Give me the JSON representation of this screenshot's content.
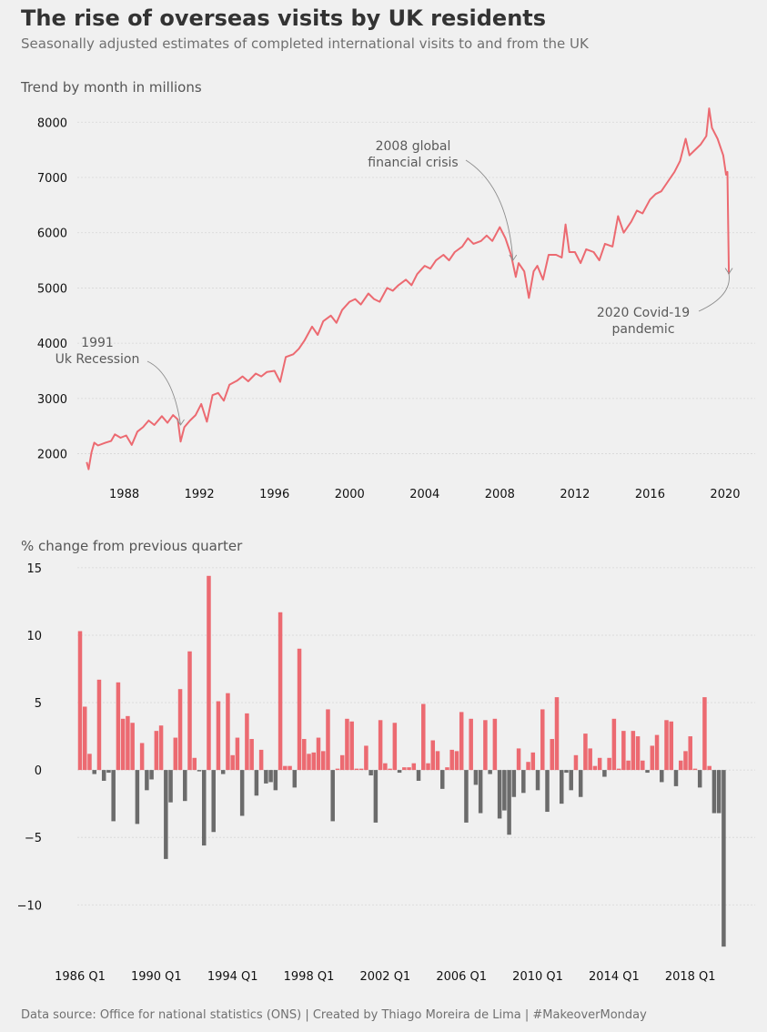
{
  "title": "The rise of overseas visits by UK residents",
  "subtitle": "Seasonally adjusted estimates of completed international visits to and from the UK",
  "footer": "Data source: Office for national statistics (ONS) | Created by Thiago Moreira de Lima | #MakeoverMonday",
  "colors": {
    "line": "#ec6a71",
    "positive": "#ec6a71",
    "negative": "#6b6b6b",
    "background": "#f0f0f0"
  },
  "chart_data": [
    {
      "type": "line",
      "title": "Trend by month in millions",
      "xlim": [
        1985.5,
        2021.6
      ],
      "ylim": [
        1400,
        8400
      ],
      "xticks": [
        1988,
        1992,
        1996,
        2000,
        2004,
        2008,
        2012,
        2016,
        2020
      ],
      "yticks": [
        2000,
        3000,
        4000,
        5000,
        6000,
        7000,
        8000
      ],
      "grid": "horizontal",
      "series": [
        {
          "points": [
            [
              1986.0,
              1850
            ],
            [
              1986.1,
              1720
            ],
            [
              1986.25,
              2020
            ],
            [
              1986.4,
              2200
            ],
            [
              1986.6,
              2150
            ],
            [
              1987.0,
              2200
            ],
            [
              1987.3,
              2230
            ],
            [
              1987.5,
              2350
            ],
            [
              1987.8,
              2290
            ],
            [
              1988.1,
              2330
            ],
            [
              1988.4,
              2160
            ],
            [
              1988.7,
              2400
            ],
            [
              1989.0,
              2480
            ],
            [
              1989.3,
              2600
            ],
            [
              1989.6,
              2520
            ],
            [
              1990.0,
              2680
            ],
            [
              1990.3,
              2560
            ],
            [
              1990.6,
              2700
            ],
            [
              1990.85,
              2620
            ],
            [
              1991.0,
              2220
            ],
            [
              1991.2,
              2480
            ],
            [
              1991.5,
              2600
            ],
            [
              1991.8,
              2700
            ],
            [
              1992.1,
              2900
            ],
            [
              1992.4,
              2580
            ],
            [
              1992.7,
              3060
            ],
            [
              1993.0,
              3100
            ],
            [
              1993.3,
              2960
            ],
            [
              1993.6,
              3250
            ],
            [
              1994.0,
              3320
            ],
            [
              1994.3,
              3400
            ],
            [
              1994.6,
              3310
            ],
            [
              1995.0,
              3450
            ],
            [
              1995.3,
              3400
            ],
            [
              1995.6,
              3480
            ],
            [
              1996.0,
              3500
            ],
            [
              1996.3,
              3300
            ],
            [
              1996.6,
              3750
            ],
            [
              1997.0,
              3800
            ],
            [
              1997.3,
              3900
            ],
            [
              1997.6,
              4050
            ],
            [
              1998.0,
              4300
            ],
            [
              1998.3,
              4150
            ],
            [
              1998.6,
              4400
            ],
            [
              1999.0,
              4500
            ],
            [
              1999.3,
              4370
            ],
            [
              1999.6,
              4600
            ],
            [
              2000.0,
              4750
            ],
            [
              2000.3,
              4800
            ],
            [
              2000.6,
              4700
            ],
            [
              2001.0,
              4900
            ],
            [
              2001.3,
              4800
            ],
            [
              2001.6,
              4750
            ],
            [
              2002.0,
              5000
            ],
            [
              2002.3,
              4950
            ],
            [
              2002.6,
              5050
            ],
            [
              2003.0,
              5150
            ],
            [
              2003.3,
              5050
            ],
            [
              2003.6,
              5250
            ],
            [
              2004.0,
              5400
            ],
            [
              2004.3,
              5350
            ],
            [
              2004.6,
              5500
            ],
            [
              2005.0,
              5600
            ],
            [
              2005.3,
              5500
            ],
            [
              2005.6,
              5650
            ],
            [
              2006.0,
              5750
            ],
            [
              2006.3,
              5900
            ],
            [
              2006.6,
              5800
            ],
            [
              2007.0,
              5850
            ],
            [
              2007.3,
              5950
            ],
            [
              2007.6,
              5850
            ],
            [
              2008.0,
              6100
            ],
            [
              2008.3,
              5900
            ],
            [
              2008.6,
              5600
            ],
            [
              2008.85,
              5200
            ],
            [
              2009.0,
              5450
            ],
            [
              2009.3,
              5300
            ],
            [
              2009.55,
              4820
            ],
            [
              2009.8,
              5300
            ],
            [
              2010.0,
              5400
            ],
            [
              2010.3,
              5150
            ],
            [
              2010.6,
              5600
            ],
            [
              2011.0,
              5600
            ],
            [
              2011.3,
              5550
            ],
            [
              2011.5,
              6150
            ],
            [
              2011.7,
              5650
            ],
            [
              2012.0,
              5650
            ],
            [
              2012.3,
              5450
            ],
            [
              2012.6,
              5700
            ],
            [
              2013.0,
              5650
            ],
            [
              2013.3,
              5500
            ],
            [
              2013.6,
              5800
            ],
            [
              2014.0,
              5750
            ],
            [
              2014.3,
              6300
            ],
            [
              2014.6,
              6000
            ],
            [
              2015.0,
              6200
            ],
            [
              2015.3,
              6400
            ],
            [
              2015.6,
              6350
            ],
            [
              2016.0,
              6600
            ],
            [
              2016.3,
              6700
            ],
            [
              2016.6,
              6750
            ],
            [
              2017.0,
              6950
            ],
            [
              2017.3,
              7100
            ],
            [
              2017.6,
              7300
            ],
            [
              2017.9,
              7700
            ],
            [
              2018.1,
              7400
            ],
            [
              2018.4,
              7500
            ],
            [
              2018.7,
              7600
            ],
            [
              2019.0,
              7750
            ],
            [
              2019.15,
              8250
            ],
            [
              2019.3,
              7900
            ],
            [
              2019.6,
              7700
            ],
            [
              2019.9,
              7400
            ],
            [
              2020.05,
              7050
            ],
            [
              2020.12,
              7100
            ],
            [
              2020.2,
              5250
            ]
          ]
        }
      ],
      "annotations": [
        {
          "lines": [
            "1991",
            "Uk Recession"
          ],
          "x": 1991.0,
          "y": 2520
        },
        {
          "lines": [
            "2008 global",
            "financial crisis"
          ],
          "x": 2008.7,
          "y": 5500
        },
        {
          "lines": [
            "2020 Covid-19",
            "pandemic"
          ],
          "x": 2020.2,
          "y": 5260
        }
      ]
    },
    {
      "type": "bar",
      "title": "% change from previous quarter",
      "ylim": [
        -14.1,
        15.6
      ],
      "yticks": [
        -10,
        -5,
        0,
        5,
        10,
        15
      ],
      "xticks": [
        "1986 Q1",
        "1990 Q1",
        "1994 Q1",
        "1998 Q1",
        "2002 Q1",
        "2006 Q1",
        "2010 Q1",
        "2014 Q1",
        "2018 Q1"
      ],
      "grid": "horizontal",
      "start_quarter": "1986 Q1",
      "values": [
        10.3,
        4.7,
        1.2,
        -0.3,
        6.7,
        -0.8,
        -0.2,
        -3.8,
        6.5,
        3.8,
        4.0,
        3.5,
        -4.0,
        2.0,
        -1.5,
        -0.7,
        2.9,
        3.3,
        -6.6,
        -2.4,
        2.4,
        6.0,
        -2.3,
        8.8,
        0.9,
        -0.1,
        -5.6,
        14.4,
        -4.6,
        5.1,
        -0.3,
        5.7,
        1.1,
        2.4,
        -3.4,
        4.2,
        2.3,
        -1.9,
        1.5,
        -1.0,
        -0.9,
        -1.5,
        11.7,
        0.3,
        0.3,
        -1.3,
        9.0,
        2.3,
        1.2,
        1.3,
        2.4,
        1.4,
        4.5,
        -3.8,
        0.1,
        1.1,
        3.8,
        3.6,
        0.1,
        0.1,
        1.8,
        -0.4,
        -3.9,
        3.7,
        0.5,
        0.1,
        3.5,
        -0.2,
        0.2,
        0.2,
        0.5,
        -0.8,
        4.9,
        0.5,
        2.2,
        1.4,
        -1.4,
        0.2,
        1.5,
        1.4,
        4.3,
        -3.9,
        3.8,
        -1.1,
        -3.2,
        3.7,
        -0.3,
        3.8,
        -3.6,
        -3.0,
        -4.8,
        -2.0,
        1.6,
        -1.7,
        0.6,
        1.3,
        -1.5,
        4.5,
        -3.1,
        2.3,
        5.4,
        -2.5,
        -0.2,
        -1.5,
        1.1,
        -2.0,
        2.7,
        1.6,
        0.3,
        0.9,
        -0.5,
        0.9,
        3.8,
        0.1,
        2.9,
        0.7,
        2.9,
        2.5,
        0.7,
        -0.2,
        1.8,
        2.6,
        -0.9,
        3.7,
        3.6,
        -1.2,
        0.7,
        1.4,
        2.5,
        0.1,
        -1.3,
        5.4,
        0.3,
        -3.2,
        -3.2,
        -13.1
      ]
    }
  ]
}
